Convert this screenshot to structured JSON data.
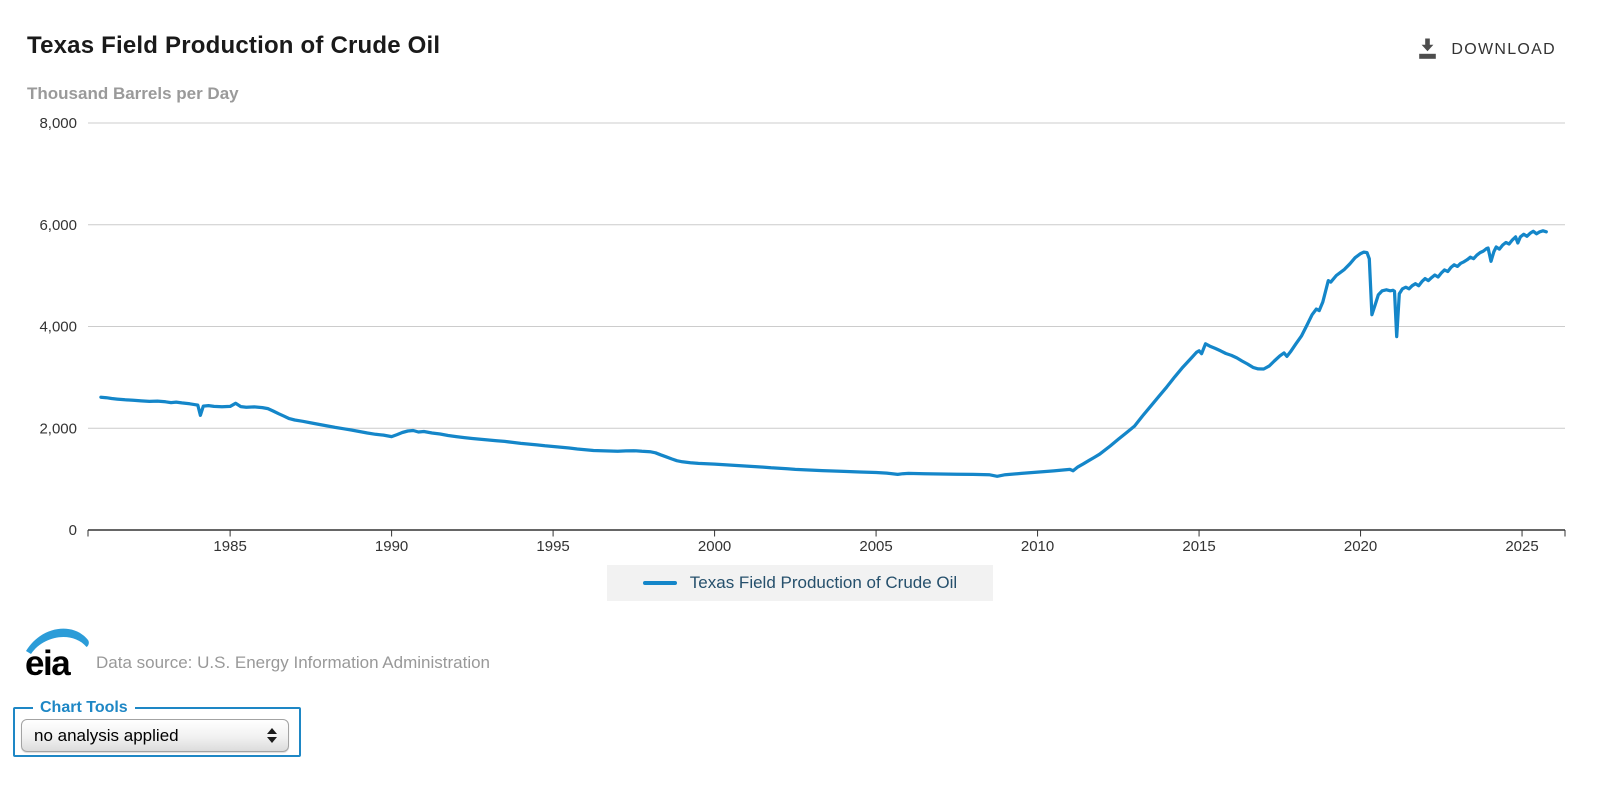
{
  "header": {
    "download_label": "DOWNLOAD"
  },
  "legend": {
    "note": "legend label bound to chart_data.series.0.name"
  },
  "footer": {
    "logo_text": "eia",
    "data_source": "Data source: U.S. Energy Information Administration"
  },
  "chart_tools": {
    "legend_label": "Chart Tools",
    "selected_option": "no analysis applied",
    "options": [
      "no analysis applied"
    ]
  },
  "colors": {
    "line": "#1486c9",
    "accent_blue": "#1e87c5",
    "logo_blue": "#2b9cd8",
    "grid": "#cccccc",
    "axis": "#333333",
    "axis_text": "#333333",
    "legend_background": "#f2f2f2",
    "legend_text": "#26506c",
    "subtitle_gray": "#9a9a9a",
    "source_gray": "#999999",
    "download_gray": "#4d4d4d"
  },
  "chart_data": {
    "type": "line",
    "title": "Texas Field Production of Crude Oil",
    "subtitle": "Thousand Barrels per Day",
    "xlabel": "",
    "ylabel": "Thousand Barrels per Day",
    "xlim": [
      1980.6,
      2026.33
    ],
    "ylim": [
      0,
      8000
    ],
    "grid": true,
    "legend_position": "bottom-center",
    "xticks": [
      {
        "value": 1985,
        "label": "1985"
      },
      {
        "value": 1990,
        "label": "1990"
      },
      {
        "value": 1995,
        "label": "1995"
      },
      {
        "value": 2000,
        "label": "2000"
      },
      {
        "value": 2005,
        "label": "2005"
      },
      {
        "value": 2010,
        "label": "2010"
      },
      {
        "value": 2015,
        "label": "2015"
      },
      {
        "value": 2020,
        "label": "2020"
      },
      {
        "value": 2025,
        "label": "2025"
      }
    ],
    "yticks": [
      {
        "value": 0,
        "label": "0"
      },
      {
        "value": 2000,
        "label": "2,000"
      },
      {
        "value": 4000,
        "label": "4,000"
      },
      {
        "value": 6000,
        "label": "6,000"
      },
      {
        "value": 8000,
        "label": "8,000"
      }
    ],
    "series": [
      {
        "name": "Texas Field Production of Crude Oil",
        "units": "thousand barrels per day",
        "points": [
          [
            1981.0,
            2610
          ],
          [
            1981.17,
            2600
          ],
          [
            1981.33,
            2585
          ],
          [
            1981.5,
            2572
          ],
          [
            1981.75,
            2560
          ],
          [
            1982.0,
            2550
          ],
          [
            1982.25,
            2537
          ],
          [
            1982.5,
            2528
          ],
          [
            1982.75,
            2533
          ],
          [
            1983.0,
            2520
          ],
          [
            1983.17,
            2505
          ],
          [
            1983.33,
            2514
          ],
          [
            1983.5,
            2498
          ],
          [
            1983.75,
            2480
          ],
          [
            1983.92,
            2462
          ],
          [
            1984.0,
            2455
          ],
          [
            1984.08,
            2255
          ],
          [
            1984.17,
            2436
          ],
          [
            1984.33,
            2446
          ],
          [
            1984.5,
            2430
          ],
          [
            1984.75,
            2424
          ],
          [
            1985.0,
            2430
          ],
          [
            1985.17,
            2490
          ],
          [
            1985.33,
            2426
          ],
          [
            1985.5,
            2414
          ],
          [
            1985.75,
            2420
          ],
          [
            1986.0,
            2406
          ],
          [
            1986.17,
            2386
          ],
          [
            1986.33,
            2340
          ],
          [
            1986.5,
            2286
          ],
          [
            1986.67,
            2236
          ],
          [
            1986.83,
            2190
          ],
          [
            1987.0,
            2162
          ],
          [
            1987.25,
            2136
          ],
          [
            1987.5,
            2106
          ],
          [
            1987.75,
            2076
          ],
          [
            1988.0,
            2046
          ],
          [
            1988.25,
            2016
          ],
          [
            1988.5,
            1991
          ],
          [
            1988.75,
            1966
          ],
          [
            1989.0,
            1936
          ],
          [
            1989.25,
            1906
          ],
          [
            1989.5,
            1882
          ],
          [
            1989.75,
            1866
          ],
          [
            1990.0,
            1836
          ],
          [
            1990.17,
            1876
          ],
          [
            1990.33,
            1916
          ],
          [
            1990.5,
            1946
          ],
          [
            1990.67,
            1956
          ],
          [
            1990.83,
            1926
          ],
          [
            1991.0,
            1936
          ],
          [
            1991.25,
            1906
          ],
          [
            1991.5,
            1886
          ],
          [
            1991.75,
            1858
          ],
          [
            1992.0,
            1836
          ],
          [
            1992.25,
            1816
          ],
          [
            1992.5,
            1798
          ],
          [
            1992.75,
            1782
          ],
          [
            1993.0,
            1770
          ],
          [
            1993.25,
            1756
          ],
          [
            1993.5,
            1742
          ],
          [
            1993.75,
            1722
          ],
          [
            1994.0,
            1702
          ],
          [
            1994.25,
            1688
          ],
          [
            1994.5,
            1672
          ],
          [
            1994.75,
            1656
          ],
          [
            1995.0,
            1642
          ],
          [
            1995.25,
            1628
          ],
          [
            1995.5,
            1612
          ],
          [
            1995.75,
            1592
          ],
          [
            1996.0,
            1578
          ],
          [
            1996.25,
            1562
          ],
          [
            1996.5,
            1556
          ],
          [
            1996.75,
            1552
          ],
          [
            1997.0,
            1548
          ],
          [
            1997.25,
            1554
          ],
          [
            1997.5,
            1558
          ],
          [
            1997.75,
            1546
          ],
          [
            1998.0,
            1540
          ],
          [
            1998.17,
            1518
          ],
          [
            1998.33,
            1478
          ],
          [
            1998.5,
            1438
          ],
          [
            1998.67,
            1398
          ],
          [
            1998.83,
            1362
          ],
          [
            1999.0,
            1340
          ],
          [
            1999.25,
            1322
          ],
          [
            1999.5,
            1310
          ],
          [
            1999.75,
            1302
          ],
          [
            2000.0,
            1296
          ],
          [
            2000.25,
            1286
          ],
          [
            2000.5,
            1276
          ],
          [
            2000.75,
            1266
          ],
          [
            2001.0,
            1256
          ],
          [
            2001.25,
            1246
          ],
          [
            2001.5,
            1236
          ],
          [
            2001.75,
            1222
          ],
          [
            2002.0,
            1212
          ],
          [
            2002.25,
            1202
          ],
          [
            2002.5,
            1192
          ],
          [
            2002.75,
            1186
          ],
          [
            2003.0,
            1178
          ],
          [
            2003.33,
            1168
          ],
          [
            2003.67,
            1160
          ],
          [
            2004.0,
            1152
          ],
          [
            2004.5,
            1140
          ],
          [
            2005.0,
            1130
          ],
          [
            2005.33,
            1118
          ],
          [
            2005.67,
            1092
          ],
          [
            2005.83,
            1106
          ],
          [
            2006.0,
            1112
          ],
          [
            2006.5,
            1106
          ],
          [
            2007.0,
            1100
          ],
          [
            2007.5,
            1096
          ],
          [
            2008.0,
            1092
          ],
          [
            2008.5,
            1086
          ],
          [
            2008.75,
            1056
          ],
          [
            2009.0,
            1086
          ],
          [
            2009.5,
            1112
          ],
          [
            2010.0,
            1138
          ],
          [
            2010.5,
            1162
          ],
          [
            2010.83,
            1182
          ],
          [
            2011.0,
            1192
          ],
          [
            2011.1,
            1164
          ],
          [
            2011.25,
            1240
          ],
          [
            2011.42,
            1302
          ],
          [
            2011.58,
            1362
          ],
          [
            2011.75,
            1426
          ],
          [
            2011.92,
            1490
          ],
          [
            2012.0,
            1530
          ],
          [
            2012.25,
            1652
          ],
          [
            2012.5,
            1782
          ],
          [
            2012.75,
            1912
          ],
          [
            2013.0,
            2042
          ],
          [
            2013.25,
            2240
          ],
          [
            2013.5,
            2432
          ],
          [
            2013.75,
            2622
          ],
          [
            2014.0,
            2812
          ],
          [
            2014.25,
            3012
          ],
          [
            2014.5,
            3202
          ],
          [
            2014.75,
            3372
          ],
          [
            2014.92,
            3492
          ],
          [
            2015.0,
            3522
          ],
          [
            2015.08,
            3466
          ],
          [
            2015.2,
            3660
          ],
          [
            2015.33,
            3614
          ],
          [
            2015.5,
            3570
          ],
          [
            2015.67,
            3520
          ],
          [
            2015.83,
            3470
          ],
          [
            2016.0,
            3432
          ],
          [
            2016.17,
            3382
          ],
          [
            2016.33,
            3322
          ],
          [
            2016.5,
            3262
          ],
          [
            2016.67,
            3196
          ],
          [
            2016.83,
            3166
          ],
          [
            2017.0,
            3164
          ],
          [
            2017.17,
            3222
          ],
          [
            2017.33,
            3322
          ],
          [
            2017.5,
            3422
          ],
          [
            2017.63,
            3482
          ],
          [
            2017.72,
            3412
          ],
          [
            2017.83,
            3502
          ],
          [
            2018.0,
            3662
          ],
          [
            2018.17,
            3812
          ],
          [
            2018.33,
            4012
          ],
          [
            2018.5,
            4232
          ],
          [
            2018.63,
            4342
          ],
          [
            2018.72,
            4312
          ],
          [
            2018.83,
            4482
          ],
          [
            2019.0,
            4902
          ],
          [
            2019.08,
            4872
          ],
          [
            2019.25,
            5002
          ],
          [
            2019.5,
            5122
          ],
          [
            2019.67,
            5232
          ],
          [
            2019.83,
            5352
          ],
          [
            2020.0,
            5432
          ],
          [
            2020.1,
            5462
          ],
          [
            2020.2,
            5452
          ],
          [
            2020.27,
            5330
          ],
          [
            2020.35,
            4232
          ],
          [
            2020.45,
            4422
          ],
          [
            2020.55,
            4622
          ],
          [
            2020.67,
            4702
          ],
          [
            2020.8,
            4722
          ],
          [
            2020.92,
            4702
          ],
          [
            2021.0,
            4712
          ],
          [
            2021.05,
            4692
          ],
          [
            2021.12,
            3802
          ],
          [
            2021.2,
            4642
          ],
          [
            2021.3,
            4742
          ],
          [
            2021.4,
            4772
          ],
          [
            2021.5,
            4742
          ],
          [
            2021.6,
            4802
          ],
          [
            2021.7,
            4842
          ],
          [
            2021.8,
            4802
          ],
          [
            2021.9,
            4882
          ],
          [
            2022.0,
            4942
          ],
          [
            2022.1,
            4902
          ],
          [
            2022.2,
            4962
          ],
          [
            2022.3,
            5012
          ],
          [
            2022.4,
            4972
          ],
          [
            2022.5,
            5052
          ],
          [
            2022.6,
            5112
          ],
          [
            2022.7,
            5082
          ],
          [
            2022.8,
            5162
          ],
          [
            2022.9,
            5212
          ],
          [
            2023.0,
            5182
          ],
          [
            2023.1,
            5242
          ],
          [
            2023.2,
            5272
          ],
          [
            2023.3,
            5312
          ],
          [
            2023.4,
            5362
          ],
          [
            2023.5,
            5332
          ],
          [
            2023.6,
            5402
          ],
          [
            2023.7,
            5452
          ],
          [
            2023.8,
            5482
          ],
          [
            2023.9,
            5532
          ],
          [
            2023.95,
            5542
          ],
          [
            2024.04,
            5282
          ],
          [
            2024.13,
            5472
          ],
          [
            2024.2,
            5562
          ],
          [
            2024.3,
            5522
          ],
          [
            2024.4,
            5602
          ],
          [
            2024.5,
            5652
          ],
          [
            2024.6,
            5622
          ],
          [
            2024.7,
            5702
          ],
          [
            2024.8,
            5762
          ],
          [
            2024.87,
            5642
          ],
          [
            2024.95,
            5762
          ],
          [
            2025.05,
            5812
          ],
          [
            2025.15,
            5772
          ],
          [
            2025.25,
            5832
          ],
          [
            2025.35,
            5872
          ],
          [
            2025.45,
            5822
          ],
          [
            2025.55,
            5862
          ],
          [
            2025.65,
            5882
          ],
          [
            2025.75,
            5862
          ]
        ]
      }
    ]
  }
}
